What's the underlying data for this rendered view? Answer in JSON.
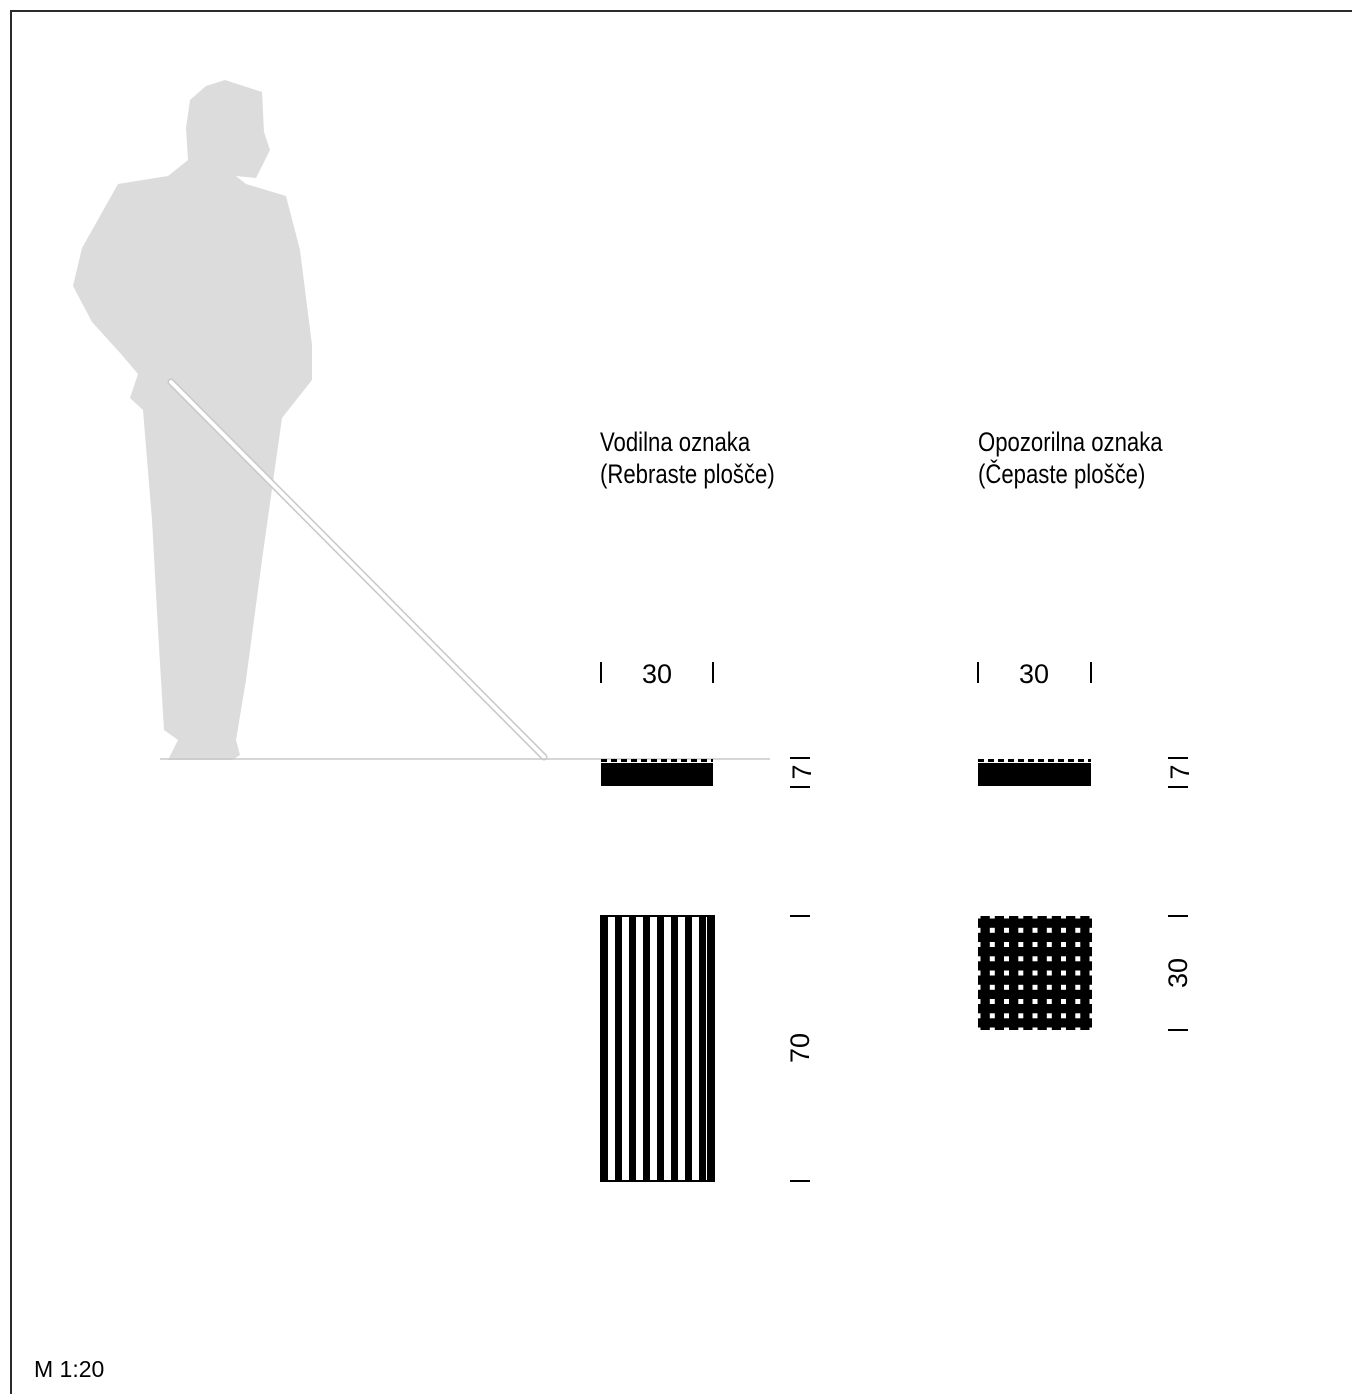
{
  "guide_marking": {
    "title_line1": "Vodilna oznaka",
    "title_line2": "(Rebraste plošče)",
    "width_label": "30",
    "height_label": "7",
    "length_label": "70"
  },
  "warning_marking": {
    "title_line1": "Opozorilna oznaka",
    "title_line2": "(Čepaste plošče)",
    "width_label": "30",
    "height_label": "7",
    "length_label": "30"
  },
  "scale_label": "M 1:20",
  "colors": {
    "silhouette": "#dcdcdc",
    "ink": "#000000",
    "frame": "#2b2b2b"
  },
  "icons": [
    "person-with-cane-silhouette"
  ]
}
